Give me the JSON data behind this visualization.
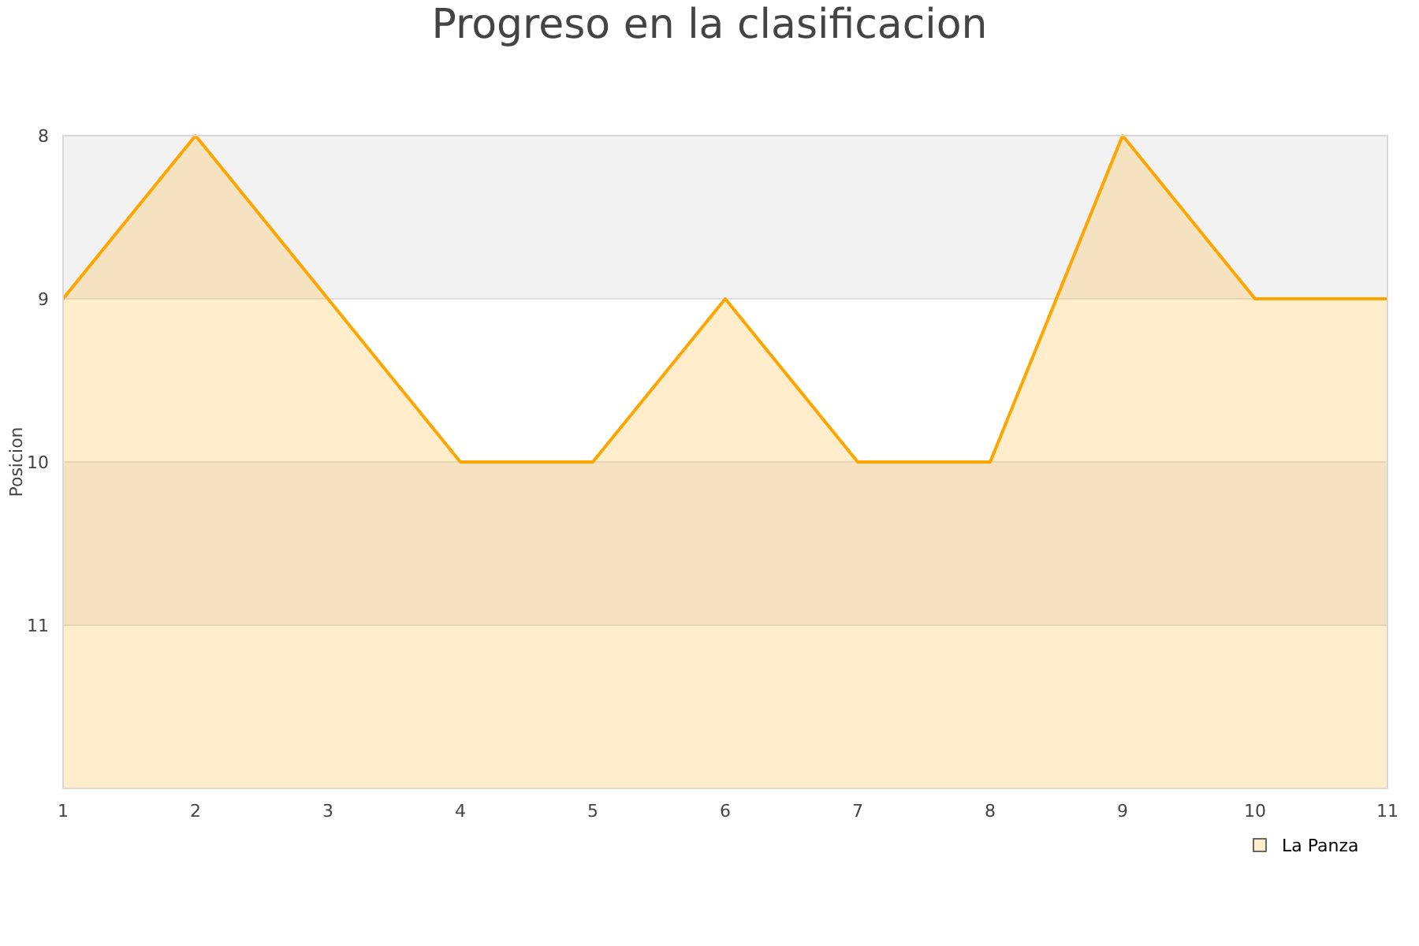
{
  "chart_data": {
    "type": "area",
    "title": "Progreso en la clasificacion",
    "ylabel": "Posicion",
    "x": [
      1,
      2,
      3,
      4,
      5,
      6,
      7,
      8,
      9,
      10,
      11
    ],
    "series": [
      {
        "name": "La Panza",
        "color": "#ffa500",
        "values": [
          9,
          8,
          9,
          10,
          10,
          9,
          10,
          10,
          8,
          9,
          9
        ]
      }
    ],
    "xlim": [
      1,
      11
    ],
    "xticks": [
      1,
      2,
      3,
      4,
      5,
      6,
      7,
      8,
      9,
      10,
      11
    ],
    "ylim": [
      12,
      8
    ],
    "yticks": [
      8,
      9,
      10,
      11
    ],
    "bands": [
      {
        "axis": "y",
        "from": 8,
        "to": 9,
        "color": "#f2f2f2"
      },
      {
        "axis": "y",
        "from": 10,
        "to": 11,
        "color": "#f2f2f2"
      }
    ],
    "grid": "y",
    "legend": "bottom right"
  }
}
